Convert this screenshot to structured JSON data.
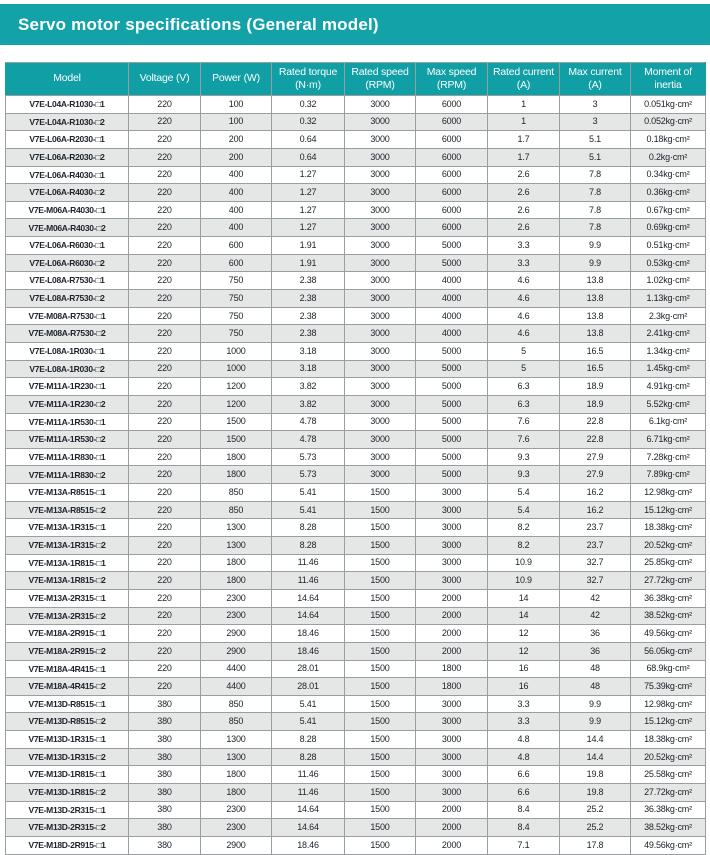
{
  "title": "Servo motor specifications (General model)",
  "colors": {
    "title_bar_bg": "#12a2a8",
    "table_header_bg": "#0f9fa5",
    "alt_row_bg": "#e4e7e6",
    "border": "#97a09e",
    "text": "#20242c",
    "header_text": "#ffffff"
  },
  "table": {
    "columns": [
      {
        "label": "Model",
        "sub": ""
      },
      {
        "label": "Voltage (V)",
        "sub": ""
      },
      {
        "label": "Power (W)",
        "sub": ""
      },
      {
        "label": "Rated torque",
        "sub": "(N·m)"
      },
      {
        "label": "Rated speed",
        "sub": "(RPM)"
      },
      {
        "label": "Max speed",
        "sub": "(RPM)"
      },
      {
        "label": "Rated current",
        "sub": "(A)"
      },
      {
        "label": "Max current",
        "sub": "(A)"
      },
      {
        "label": "Moment of",
        "sub": "inertia"
      }
    ],
    "rows": [
      [
        "V7E-L04A-R1030-□1",
        "220",
        "100",
        "0.32",
        "3000",
        "6000",
        "1",
        "3",
        "0.051kg·cm²"
      ],
      [
        "V7E-L04A-R1030-□2",
        "220",
        "100",
        "0.32",
        "3000",
        "6000",
        "1",
        "3",
        "0.052kg·cm²"
      ],
      [
        "V7E-L06A-R2030-□1",
        "220",
        "200",
        "0.64",
        "3000",
        "6000",
        "1.7",
        "5.1",
        "0.18kg·cm²"
      ],
      [
        "V7E-L06A-R2030-□2",
        "220",
        "200",
        "0.64",
        "3000",
        "6000",
        "1.7",
        "5.1",
        "0.2kg·cm²"
      ],
      [
        "V7E-L06A-R4030-□1",
        "220",
        "400",
        "1.27",
        "3000",
        "6000",
        "2.6",
        "7.8",
        "0.34kg·cm²"
      ],
      [
        "V7E-L06A-R4030-□2",
        "220",
        "400",
        "1.27",
        "3000",
        "6000",
        "2.6",
        "7.8",
        "0.36kg·cm²"
      ],
      [
        "V7E-M06A-R4030-□1",
        "220",
        "400",
        "1.27",
        "3000",
        "6000",
        "2.6",
        "7.8",
        "0.67kg·cm²"
      ],
      [
        "V7E-M06A-R4030-□2",
        "220",
        "400",
        "1.27",
        "3000",
        "6000",
        "2.6",
        "7.8",
        "0.69kg·cm²"
      ],
      [
        "V7E-L06A-R6030-□1",
        "220",
        "600",
        "1.91",
        "3000",
        "5000",
        "3.3",
        "9.9",
        "0.51kg·cm²"
      ],
      [
        "V7E-L06A-R6030-□2",
        "220",
        "600",
        "1.91",
        "3000",
        "5000",
        "3.3",
        "9.9",
        "0.53kg·cm²"
      ],
      [
        "V7E-L08A-R7530-□1",
        "220",
        "750",
        "2.38",
        "3000",
        "4000",
        "4.6",
        "13.8",
        "1.02kg·cm²"
      ],
      [
        "V7E-L08A-R7530-□2",
        "220",
        "750",
        "2.38",
        "3000",
        "4000",
        "4.6",
        "13.8",
        "1.13kg·cm²"
      ],
      [
        "V7E-M08A-R7530-□1",
        "220",
        "750",
        "2.38",
        "3000",
        "4000",
        "4.6",
        "13.8",
        "2.3kg·cm²"
      ],
      [
        "V7E-M08A-R7530-□2",
        "220",
        "750",
        "2.38",
        "3000",
        "4000",
        "4.6",
        "13.8",
        "2.41kg·cm²"
      ],
      [
        "V7E-L08A-1R030-□1",
        "220",
        "1000",
        "3.18",
        "3000",
        "5000",
        "5",
        "16.5",
        "1.34kg·cm²"
      ],
      [
        "V7E-L08A-1R030-□2",
        "220",
        "1000",
        "3.18",
        "3000",
        "5000",
        "5",
        "16.5",
        "1.45kg·cm²"
      ],
      [
        "V7E-M11A-1R230-□1",
        "220",
        "1200",
        "3.82",
        "3000",
        "5000",
        "6.3",
        "18.9",
        "4.91kg·cm²"
      ],
      [
        "V7E-M11A-1R230-□2",
        "220",
        "1200",
        "3.82",
        "3000",
        "5000",
        "6.3",
        "18.9",
        "5.52kg·cm²"
      ],
      [
        "V7E-M11A-1R530-□1",
        "220",
        "1500",
        "4.78",
        "3000",
        "5000",
        "7.6",
        "22.8",
        "6.1kg·cm²"
      ],
      [
        "V7E-M11A-1R530-□2",
        "220",
        "1500",
        "4.78",
        "3000",
        "5000",
        "7.6",
        "22.8",
        "6.71kg·cm²"
      ],
      [
        "V7E-M11A-1R830-□1",
        "220",
        "1800",
        "5.73",
        "3000",
        "5000",
        "9.3",
        "27.9",
        "7.28kg·cm²"
      ],
      [
        "V7E-M11A-1R830-□2",
        "220",
        "1800",
        "5.73",
        "3000",
        "5000",
        "9.3",
        "27.9",
        "7.89kg·cm²"
      ],
      [
        "V7E-M13A-R8515-□1",
        "220",
        "850",
        "5.41",
        "1500",
        "3000",
        "5.4",
        "16.2",
        "12.98kg·cm²"
      ],
      [
        "V7E-M13A-R8515-□2",
        "220",
        "850",
        "5.41",
        "1500",
        "3000",
        "5.4",
        "16.2",
        "15.12kg·cm²"
      ],
      [
        "V7E-M13A-1R315-□1",
        "220",
        "1300",
        "8.28",
        "1500",
        "3000",
        "8.2",
        "23.7",
        "18.38kg·cm²"
      ],
      [
        "V7E-M13A-1R315-□2",
        "220",
        "1300",
        "8.28",
        "1500",
        "3000",
        "8.2",
        "23.7",
        "20.52kg·cm²"
      ],
      [
        "V7E-M13A-1R815-□1",
        "220",
        "1800",
        "11.46",
        "1500",
        "3000",
        "10.9",
        "32.7",
        "25.85kg·cm²"
      ],
      [
        "V7E-M13A-1R815-□2",
        "220",
        "1800",
        "11.46",
        "1500",
        "3000",
        "10.9",
        "32.7",
        "27.72kg·cm²"
      ],
      [
        "V7E-M13A-2R315-□1",
        "220",
        "2300",
        "14.64",
        "1500",
        "2000",
        "14",
        "42",
        "36.38kg·cm²"
      ],
      [
        "V7E-M13A-2R315-□2",
        "220",
        "2300",
        "14.64",
        "1500",
        "2000",
        "14",
        "42",
        "38.52kg·cm²"
      ],
      [
        "V7E-M18A-2R915-□1",
        "220",
        "2900",
        "18.46",
        "1500",
        "2000",
        "12",
        "36",
        "49.56kg·cm²"
      ],
      [
        "V7E-M18A-2R915-□2",
        "220",
        "2900",
        "18.46",
        "1500",
        "2000",
        "12",
        "36",
        "56.05kg·cm²"
      ],
      [
        "V7E-M18A-4R415-□1",
        "220",
        "4400",
        "28.01",
        "1500",
        "1800",
        "16",
        "48",
        "68.9kg·cm²"
      ],
      [
        "V7E-M18A-4R415-□2",
        "220",
        "4400",
        "28.01",
        "1500",
        "1800",
        "16",
        "48",
        "75.39kg·cm²"
      ],
      [
        "V7E-M13D-R8515-□1",
        "380",
        "850",
        "5.41",
        "1500",
        "3000",
        "3.3",
        "9.9",
        "12.98kg·cm²"
      ],
      [
        "V7E-M13D-R8515-□2",
        "380",
        "850",
        "5.41",
        "1500",
        "3000",
        "3.3",
        "9.9",
        "15.12kg·cm²"
      ],
      [
        "V7E-M13D-1R315-□1",
        "380",
        "1300",
        "8.28",
        "1500",
        "3000",
        "4.8",
        "14.4",
        "18.38kg·cm²"
      ],
      [
        "V7E-M13D-1R315-□2",
        "380",
        "1300",
        "8.28",
        "1500",
        "3000",
        "4.8",
        "14.4",
        "20.52kg·cm²"
      ],
      [
        "V7E-M13D-1R815-□1",
        "380",
        "1800",
        "11.46",
        "1500",
        "3000",
        "6.6",
        "19.8",
        "25.58kg·cm²"
      ],
      [
        "V7E-M13D-1R815-□2",
        "380",
        "1800",
        "11.46",
        "1500",
        "3000",
        "6.6",
        "19.8",
        "27.72kg·cm²"
      ],
      [
        "V7E-M13D-2R315-□1",
        "380",
        "2300",
        "14.64",
        "1500",
        "2000",
        "8.4",
        "25.2",
        "36.38kg·cm²"
      ],
      [
        "V7E-M13D-2R315-□2",
        "380",
        "2300",
        "14.64",
        "1500",
        "2000",
        "8.4",
        "25.2",
        "38.52kg·cm²"
      ],
      [
        "V7E-M18D-2R915-□1",
        "380",
        "2900",
        "18.46",
        "1500",
        "2000",
        "7.1",
        "17.8",
        "49.56kg·cm²"
      ]
    ]
  }
}
